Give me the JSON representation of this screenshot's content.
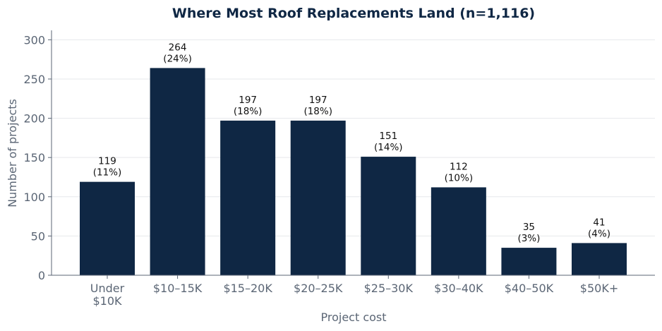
{
  "chart_data": {
    "type": "bar",
    "title": "Where Most Roof Replacements Land (n=1,116)",
    "xlabel": "Project cost",
    "ylabel": "Number of projects",
    "categories": [
      [
        "Under",
        "$10K"
      ],
      [
        "$10–15K"
      ],
      [
        "$15–20K"
      ],
      [
        "$20–25K"
      ],
      [
        "$25–30K"
      ],
      [
        "$30–40K"
      ],
      [
        "$40–50K"
      ],
      [
        "$50K+"
      ]
    ],
    "values": [
      119,
      264,
      197,
      197,
      151,
      112,
      35,
      41
    ],
    "percent_labels": [
      "(11%)",
      "(24%)",
      "(18%)",
      "(18%)",
      "(14%)",
      "(10%)",
      "(3%)",
      "(4%)"
    ],
    "ylim": [
      0,
      312
    ],
    "yticks": [
      0,
      50,
      100,
      150,
      200,
      250,
      300
    ],
    "grid": true,
    "bar_color": "#0f2744",
    "grid_color": "#e6e8eb",
    "axis_color": "#5b6675"
  }
}
